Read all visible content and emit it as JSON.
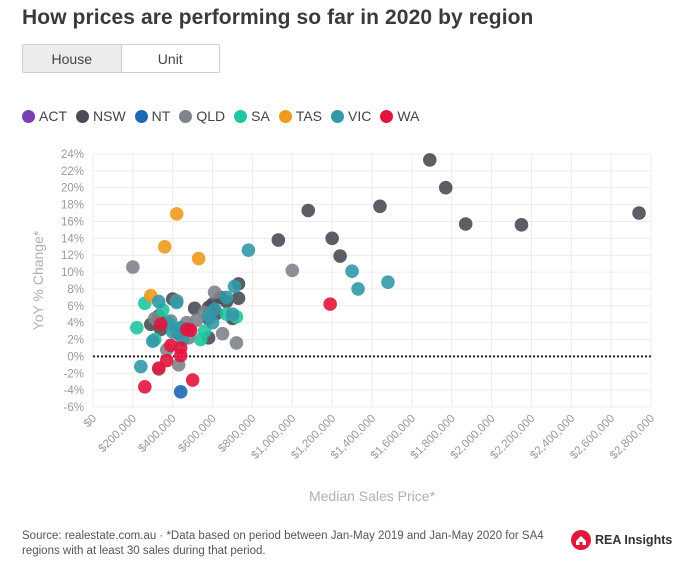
{
  "title": "How prices are performing so far in 2020 by region",
  "toggle": {
    "house_label": "House",
    "unit_label": "Unit",
    "selected": "House"
  },
  "legend": [
    {
      "name": "ACT",
      "color": "#7b3fb5"
    },
    {
      "name": "NSW",
      "color": "#4a4d55"
    },
    {
      "name": "NT",
      "color": "#1f66b3"
    },
    {
      "name": "QLD",
      "color": "#7f838b"
    },
    {
      "name": "SA",
      "color": "#22c5a0"
    },
    {
      "name": "TAS",
      "color": "#ef9a1e"
    },
    {
      "name": "VIC",
      "color": "#3299a8"
    },
    {
      "name": "WA",
      "color": "#e2153d"
    }
  ],
  "chart_data": {
    "type": "scatter",
    "xlabel": "Median Sales Price*",
    "ylabel": "YoY % Change*",
    "xlim": [
      0,
      2800000
    ],
    "ylim": [
      -6,
      24
    ],
    "x_ticks": [
      0,
      200000,
      400000,
      600000,
      800000,
      1000000,
      1200000,
      1400000,
      1600000,
      1800000,
      2000000,
      2200000,
      2400000,
      2600000,
      2800000
    ],
    "x_tick_labels": [
      "$0",
      "$200,000",
      "$400,000",
      "$600,000",
      "$800,000",
      "$1,000,000",
      "$1,200,000",
      "$1,400,000",
      "$1,600,000",
      "$1,800,000",
      "$2,000,000",
      "$2,200,000",
      "$2,400,000",
      "$2,600,000",
      "$2,800,000"
    ],
    "y_ticks": [
      -6,
      -4,
      -2,
      0,
      2,
      4,
      6,
      8,
      10,
      12,
      14,
      16,
      18,
      20,
      22,
      24
    ],
    "y_tick_labels": [
      "-6%",
      "-4%",
      "-2%",
      "0%",
      "2%",
      "4%",
      "6%",
      "8%",
      "10%",
      "12%",
      "14%",
      "16%",
      "18%",
      "20%",
      "22%",
      "24%"
    ],
    "reference_line_y": 0,
    "series": [
      {
        "name": "ACT",
        "color": "#7b3fb5",
        "points": []
      },
      {
        "name": "NSW",
        "color": "#4a4d55",
        "points": [
          {
            "x": 1690000,
            "y": 23.3
          },
          {
            "x": 1770000,
            "y": 20.0
          },
          {
            "x": 1870000,
            "y": 15.7
          },
          {
            "x": 2150000,
            "y": 15.6
          },
          {
            "x": 2740000,
            "y": 17.0
          },
          {
            "x": 1440000,
            "y": 17.8
          },
          {
            "x": 1080000,
            "y": 17.3
          },
          {
            "x": 1200000,
            "y": 14.0
          },
          {
            "x": 930000,
            "y": 13.8
          },
          {
            "x": 1240000,
            "y": 11.9
          },
          {
            "x": 730000,
            "y": 8.6
          },
          {
            "x": 730000,
            "y": 6.9
          },
          {
            "x": 670000,
            "y": 6.5
          },
          {
            "x": 640000,
            "y": 7.0
          },
          {
            "x": 600000,
            "y": 6.2
          },
          {
            "x": 580000,
            "y": 5.8
          },
          {
            "x": 510000,
            "y": 5.7
          },
          {
            "x": 620000,
            "y": 5.1
          },
          {
            "x": 580000,
            "y": 4.5
          },
          {
            "x": 700000,
            "y": 4.5
          },
          {
            "x": 580000,
            "y": 2.2
          },
          {
            "x": 400000,
            "y": 6.8
          },
          {
            "x": 330000,
            "y": 4.8
          },
          {
            "x": 290000,
            "y": 3.8
          },
          {
            "x": 340000,
            "y": 3.2
          },
          {
            "x": 430000,
            "y": 2.7
          },
          {
            "x": 480000,
            "y": 3.3
          }
        ]
      },
      {
        "name": "NT",
        "color": "#1f66b3",
        "points": [
          {
            "x": 440000,
            "y": -4.2
          }
        ]
      },
      {
        "name": "QLD",
        "color": "#7f838b",
        "points": [
          {
            "x": 200000,
            "y": 10.6
          },
          {
            "x": 1000000,
            "y": 10.2
          },
          {
            "x": 610000,
            "y": 7.6
          },
          {
            "x": 420000,
            "y": 6.6
          },
          {
            "x": 560000,
            "y": 5.2
          },
          {
            "x": 520000,
            "y": 4.3
          },
          {
            "x": 470000,
            "y": 4.0
          },
          {
            "x": 310000,
            "y": 4.5
          },
          {
            "x": 390000,
            "y": 4.2
          },
          {
            "x": 480000,
            "y": 2.2
          },
          {
            "x": 650000,
            "y": 2.7
          },
          {
            "x": 720000,
            "y": 1.6
          },
          {
            "x": 370000,
            "y": 0.8
          },
          {
            "x": 430000,
            "y": -1.0
          },
          {
            "x": 330000,
            "y": -1.5
          }
        ]
      },
      {
        "name": "SA",
        "color": "#22c5a0",
        "points": [
          {
            "x": 260000,
            "y": 6.3
          },
          {
            "x": 220000,
            "y": 3.4
          },
          {
            "x": 310000,
            "y": 2.0
          },
          {
            "x": 350000,
            "y": 5.5
          },
          {
            "x": 380000,
            "y": 4.0
          },
          {
            "x": 560000,
            "y": 3.0
          },
          {
            "x": 540000,
            "y": 2.0
          },
          {
            "x": 670000,
            "y": 5.0
          },
          {
            "x": 720000,
            "y": 4.7
          },
          {
            "x": 420000,
            "y": 3.3
          }
        ]
      },
      {
        "name": "TAS",
        "color": "#ef9a1e",
        "points": [
          {
            "x": 420000,
            "y": 16.9
          },
          {
            "x": 360000,
            "y": 13.0
          },
          {
            "x": 530000,
            "y": 11.6
          },
          {
            "x": 290000,
            "y": 7.2
          }
        ]
      },
      {
        "name": "VIC",
        "color": "#3299a8",
        "points": [
          {
            "x": 780000,
            "y": 12.6
          },
          {
            "x": 1300000,
            "y": 10.1
          },
          {
            "x": 1330000,
            "y": 8.0
          },
          {
            "x": 1480000,
            "y": 8.8
          },
          {
            "x": 710000,
            "y": 8.3
          },
          {
            "x": 670000,
            "y": 7.0
          },
          {
            "x": 610000,
            "y": 5.6
          },
          {
            "x": 580000,
            "y": 4.8
          },
          {
            "x": 600000,
            "y": 4.0
          },
          {
            "x": 700000,
            "y": 5.0
          },
          {
            "x": 330000,
            "y": 6.5
          },
          {
            "x": 420000,
            "y": 6.4
          },
          {
            "x": 380000,
            "y": 4.0
          },
          {
            "x": 440000,
            "y": 3.4
          },
          {
            "x": 400000,
            "y": 2.9
          },
          {
            "x": 450000,
            "y": 2.0
          },
          {
            "x": 240000,
            "y": -1.2
          },
          {
            "x": 300000,
            "y": 1.8
          }
        ]
      },
      {
        "name": "WA",
        "color": "#e2153d",
        "points": [
          {
            "x": 1190000,
            "y": 6.2
          },
          {
            "x": 340000,
            "y": 3.8
          },
          {
            "x": 470000,
            "y": 3.2
          },
          {
            "x": 490000,
            "y": 3.1
          },
          {
            "x": 390000,
            "y": 1.3
          },
          {
            "x": 440000,
            "y": 1.0
          },
          {
            "x": 440000,
            "y": 0.1
          },
          {
            "x": 370000,
            "y": -0.5
          },
          {
            "x": 330000,
            "y": -1.4
          },
          {
            "x": 500000,
            "y": -2.8
          },
          {
            "x": 260000,
            "y": -3.6
          }
        ]
      }
    ]
  },
  "footer": {
    "source_text": "Source: realestate.com.au · *Data based on period between Jan-May 2019 and Jan-May 2020 for SA4 regions with at least 30 sales during that period."
  },
  "brand": {
    "name": "REA Insights",
    "color": "#e2153d"
  }
}
